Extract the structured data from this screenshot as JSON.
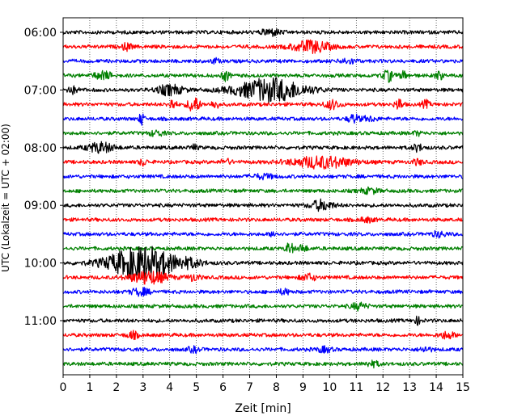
{
  "chart_data": {
    "type": "line",
    "title": "",
    "xlabel": "Zeit  [min]",
    "ylabel": "UTC (Lokalzeit = UTC + 02:00)",
    "xlim": [
      0,
      15
    ],
    "x_ticks": [
      0,
      1,
      2,
      3,
      4,
      5,
      6,
      7,
      8,
      9,
      10,
      11,
      12,
      13,
      14,
      15
    ],
    "x_tick_labels": [
      "0",
      "1",
      "2",
      "3",
      "4",
      "5",
      "6",
      "7",
      "8",
      "9",
      "10",
      "11",
      "12",
      "13",
      "14",
      "15"
    ],
    "y_tick_labels": [
      "06:00",
      "07:00",
      "08:00",
      "09:00",
      "10:00",
      "11:00"
    ],
    "grid": "vertical dotted",
    "row_interval_minutes": 15,
    "color_cycle": [
      "#000000",
      "#ff0000",
      "#0000ff",
      "#008000"
    ],
    "rows": [
      {
        "time": "06:00",
        "color": "#000000",
        "events": [
          {
            "t": 7.8,
            "amp": 0.8,
            "dur": 0.25
          }
        ]
      },
      {
        "time": "06:15",
        "color": "#ff0000",
        "events": [
          {
            "t": 2.4,
            "amp": 0.9,
            "dur": 0.12
          },
          {
            "t": 9.3,
            "amp": 1.4,
            "dur": 0.5
          }
        ]
      },
      {
        "time": "06:30",
        "color": "#0000ff",
        "events": [
          {
            "t": 5.7,
            "amp": 0.6,
            "dur": 0.1
          },
          {
            "t": 10.7,
            "amp": 0.6,
            "dur": 0.2
          }
        ]
      },
      {
        "time": "06:45",
        "color": "#008000",
        "events": [
          {
            "t": 1.5,
            "amp": 0.9,
            "dur": 0.25
          },
          {
            "t": 6.1,
            "amp": 1.2,
            "dur": 0.1
          },
          {
            "t": 12.2,
            "amp": 1.3,
            "dur": 0.15
          },
          {
            "t": 12.8,
            "amp": 1.0,
            "dur": 0.1
          },
          {
            "t": 14.1,
            "amp": 1.0,
            "dur": 0.1
          }
        ]
      },
      {
        "time": "07:00",
        "color": "#000000",
        "events": [
          {
            "t": 0.3,
            "amp": 0.8,
            "dur": 0.2
          },
          {
            "t": 4.0,
            "amp": 1.2,
            "dur": 0.35
          },
          {
            "t": 7.8,
            "amp": 2.8,
            "dur": 0.9
          }
        ]
      },
      {
        "time": "07:15",
        "color": "#ff0000",
        "events": [
          {
            "t": 4.1,
            "amp": 1.2,
            "dur": 0.1
          },
          {
            "t": 4.9,
            "amp": 2.0,
            "dur": 0.15
          },
          {
            "t": 5.7,
            "amp": 1.0,
            "dur": 0.1
          },
          {
            "t": 10.1,
            "amp": 1.0,
            "dur": 0.2
          },
          {
            "t": 12.6,
            "amp": 1.4,
            "dur": 0.1
          },
          {
            "t": 13.6,
            "amp": 0.9,
            "dur": 0.1
          }
        ]
      },
      {
        "time": "07:30",
        "color": "#0000ff",
        "events": [
          {
            "t": 2.95,
            "amp": 1.8,
            "dur": 0.06
          },
          {
            "t": 10.9,
            "amp": 1.0,
            "dur": 0.15
          },
          {
            "t": 11.5,
            "amp": 0.5,
            "dur": 0.2
          }
        ]
      },
      {
        "time": "07:45",
        "color": "#008000",
        "events": [
          {
            "t": 3.5,
            "amp": 0.6,
            "dur": 0.2
          },
          {
            "t": 13.3,
            "amp": 0.5,
            "dur": 0.1
          }
        ]
      },
      {
        "time": "08:00",
        "color": "#000000",
        "events": [
          {
            "t": 1.4,
            "amp": 1.2,
            "dur": 0.35
          },
          {
            "t": 4.9,
            "amp": 0.6,
            "dur": 0.1
          },
          {
            "t": 13.3,
            "amp": 0.8,
            "dur": 0.15
          }
        ]
      },
      {
        "time": "08:15",
        "color": "#ff0000",
        "events": [
          {
            "t": 3.0,
            "amp": 0.8,
            "dur": 0.1
          },
          {
            "t": 6.1,
            "amp": 0.6,
            "dur": 0.15
          },
          {
            "t": 9.7,
            "amp": 1.4,
            "dur": 0.8
          },
          {
            "t": 13.3,
            "amp": 0.6,
            "dur": 0.15
          }
        ]
      },
      {
        "time": "08:30",
        "color": "#0000ff",
        "events": [
          {
            "t": 7.5,
            "amp": 0.5,
            "dur": 0.3
          }
        ]
      },
      {
        "time": "08:45",
        "color": "#008000",
        "events": [
          {
            "t": 11.5,
            "amp": 0.6,
            "dur": 0.25
          }
        ]
      },
      {
        "time": "09:00",
        "color": "#000000",
        "events": [
          {
            "t": 9.7,
            "amp": 1.2,
            "dur": 0.3
          }
        ]
      },
      {
        "time": "09:15",
        "color": "#ff0000",
        "events": [
          {
            "t": 11.4,
            "amp": 0.5,
            "dur": 0.2
          }
        ]
      },
      {
        "time": "09:30",
        "color": "#0000ff",
        "events": [
          {
            "t": 7.9,
            "amp": 0.6,
            "dur": 0.1
          },
          {
            "t": 14.1,
            "amp": 0.6,
            "dur": 0.2
          }
        ]
      },
      {
        "time": "09:45",
        "color": "#008000",
        "events": [
          {
            "t": 8.5,
            "amp": 1.4,
            "dur": 0.1
          },
          {
            "t": 9.0,
            "amp": 1.0,
            "dur": 0.1
          }
        ]
      },
      {
        "time": "10:00",
        "color": "#000000",
        "events": [
          {
            "t": 3.0,
            "amp": 4.0,
            "dur": 0.9
          },
          {
            "t": 4.8,
            "amp": 0.6,
            "dur": 0.3
          }
        ]
      },
      {
        "time": "10:15",
        "color": "#ff0000",
        "events": [
          {
            "t": 3.2,
            "amp": 1.5,
            "dur": 0.5
          },
          {
            "t": 4.9,
            "amp": 0.8,
            "dur": 0.15
          },
          {
            "t": 9.2,
            "amp": 0.8,
            "dur": 0.2
          }
        ]
      },
      {
        "time": "10:30",
        "color": "#0000ff",
        "events": [
          {
            "t": 2.9,
            "amp": 0.8,
            "dur": 0.25
          },
          {
            "t": 8.3,
            "amp": 0.6,
            "dur": 0.15
          }
        ]
      },
      {
        "time": "10:45",
        "color": "#008000",
        "events": [
          {
            "t": 11.1,
            "amp": 0.8,
            "dur": 0.2
          }
        ]
      },
      {
        "time": "11:00",
        "color": "#000000",
        "events": [
          {
            "t": 13.3,
            "amp": 0.8,
            "dur": 0.1
          }
        ]
      },
      {
        "time": "11:15",
        "color": "#ff0000",
        "events": [
          {
            "t": 2.6,
            "amp": 0.8,
            "dur": 0.15
          },
          {
            "t": 14.4,
            "amp": 0.8,
            "dur": 0.2
          }
        ]
      },
      {
        "time": "11:30",
        "color": "#0000ff",
        "events": [
          {
            "t": 4.9,
            "amp": 0.6,
            "dur": 0.15
          },
          {
            "t": 9.8,
            "amp": 0.6,
            "dur": 0.2
          },
          {
            "t": 13.6,
            "amp": 0.6,
            "dur": 0.15
          }
        ]
      },
      {
        "time": "11:45",
        "color": "#008000",
        "events": [
          {
            "t": 11.6,
            "amp": 0.6,
            "dur": 0.2
          }
        ]
      }
    ]
  }
}
